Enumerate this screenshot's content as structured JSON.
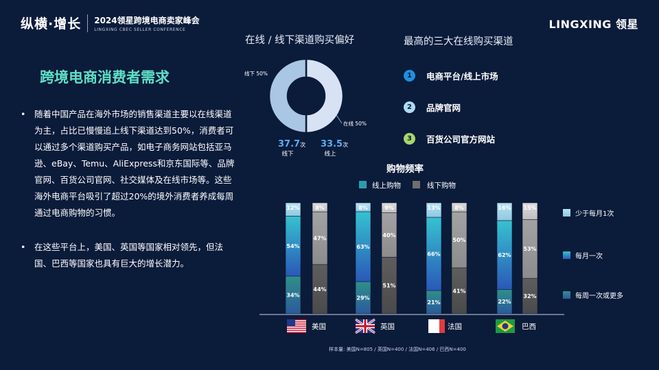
{
  "header": {
    "brand_mark": "纵横·增长",
    "event_title": "2024领星跨境电商卖家峰会",
    "event_subtitle": "LINGXING CBEC SELLER CONFERENCE",
    "logo": "LINGXING 领星"
  },
  "left": {
    "heading": "跨境电商消费者需求",
    "bullets": [
      "随着中国产品在海外市场的销售渠道主要以在线渠道为主，占比已慢慢追上线下渠道达到50%，消费者可以通过多个渠道购买产品，如电子商务网站包括亚马逊、eBay、Temu、AliExpress和京东国际等、品牌官网、百货公司官网、社交媒体及在线市场等。这些海外电商平台吸引了超过20%的境外消费者养成每周通过电商购物的习惯。",
      "在这些平台上，美国、英国等国家相对领先，但法国、巴西等国家也具有巨大的增长潜力。"
    ]
  },
  "top3": {
    "title": "最高的三大在线购买渠道",
    "items": [
      {
        "num": "1",
        "label": "电商平台/线上市场",
        "color": "#1f8fe0"
      },
      {
        "num": "2",
        "label": "品牌官网",
        "color": "#a9dcf2"
      },
      {
        "num": "3",
        "label": "百货公司官方网站",
        "color": "#a8d66e"
      }
    ]
  },
  "footnote": "样本量: 美国N=805 / 英国N=400 / 法国N=406 / 巴西N=400",
  "colors": {
    "online": "#2a9dab",
    "offline": "#6e6e6e",
    "donut_offline": "#d7e3f4",
    "donut_online": "#a9c6e4"
  },
  "chart_data": [
    {
      "type": "pie",
      "title": "在线 / 线下渠道购买偏好",
      "hole": true,
      "slices": [
        {
          "label": "线下 50%",
          "value": 50,
          "stat_value": "37.7",
          "stat_unit": "次",
          "stat_label": "线下"
        },
        {
          "label": "在线 50%",
          "value": 50,
          "stat_value": "33.5",
          "stat_unit": "次",
          "stat_label": "线上"
        }
      ]
    },
    {
      "type": "bar",
      "stacked": true,
      "title": "购物频率",
      "legend": [
        "线上购物",
        "线下购物"
      ],
      "categories": [
        "美国",
        "英国",
        "法国",
        "巴西"
      ],
      "frequency_labels": [
        "少于每月1次",
        "每月一次",
        "每周一次或更多"
      ],
      "series": [
        {
          "name": "线上购物",
          "values": [
            [
              34,
              54,
              12
            ],
            [
              29,
              63,
              8
            ],
            [
              21,
              66,
              13
            ],
            [
              22,
              62,
              16
            ]
          ]
        },
        {
          "name": "线下购物",
          "values": [
            [
              44,
              47,
              8
            ],
            [
              51,
              40,
              9
            ],
            [
              41,
              50,
              8
            ],
            [
              32,
              53,
              15
            ]
          ]
        }
      ],
      "ylim": [
        0,
        100
      ]
    }
  ]
}
